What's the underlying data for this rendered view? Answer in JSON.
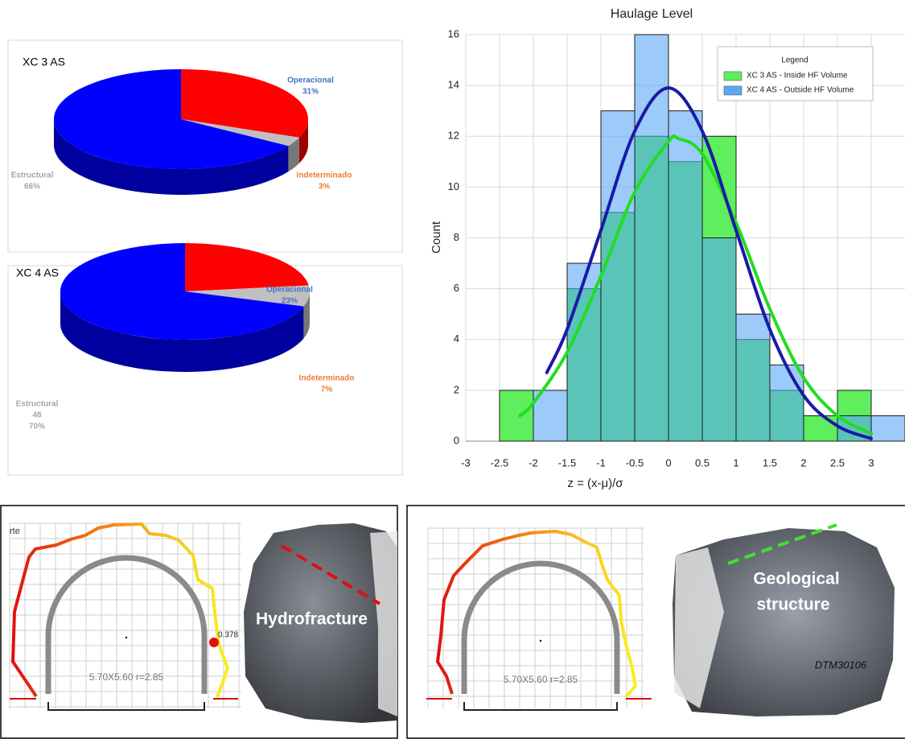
{
  "chart_data": [
    {
      "type": "pie",
      "title": "XC 3 AS",
      "categories": [
        "Operacional",
        "Indeterminado",
        "Estructural"
      ],
      "values": [
        31,
        3,
        66
      ],
      "value_labels": [
        "31%",
        "3%",
        "66%"
      ],
      "colors": [
        "#ff0000",
        "#c0c0c0",
        "#0000ff"
      ]
    },
    {
      "type": "pie",
      "title": "XC 4 AS",
      "categories": [
        "Operacional",
        "Indeterminado",
        "Estructural"
      ],
      "values": [
        23,
        7,
        70
      ],
      "value_labels": [
        "23%",
        "7%",
        "70%"
      ],
      "counts": [
        null,
        null,
        48
      ],
      "colors": [
        "#ff0000",
        "#c0c0c0",
        "#0000ff"
      ]
    },
    {
      "type": "histogram",
      "title": "Haulage Level",
      "x_label": "z = (x-μ)/σ",
      "y_label": "Count",
      "bins": [
        -2.5,
        -2,
        -1.5,
        -1,
        -0.5,
        0,
        0.5,
        1,
        1.5,
        2,
        2.5,
        3,
        3.5
      ],
      "series": [
        {
          "name": "XC 3 AS - Inside HF Volume",
          "color": "#5eee5e",
          "values": [
            2,
            0,
            6,
            9,
            12,
            11,
            12,
            4,
            2,
            1,
            2,
            0
          ]
        },
        {
          "name": "XC 4 AS - Outside HF Volume",
          "color": "#5aa8f5",
          "values": [
            0,
            2,
            7,
            13,
            16,
            13,
            8,
            5,
            3,
            0,
            1,
            1
          ]
        }
      ],
      "fits": [
        {
          "color": "#22dd22",
          "x": [
            -2.2,
            -2,
            -1.5,
            -1,
            -0.5,
            0,
            0.15,
            0.5,
            1,
            1.5,
            2,
            2.5,
            3
          ],
          "values": [
            1.0,
            1.5,
            3.5,
            6.5,
            9.8,
            11.8,
            11.9,
            11.3,
            8.6,
            5.2,
            2.5,
            1.0,
            0.3
          ]
        },
        {
          "color": "#1a1aa8",
          "x": [
            -1.8,
            -1.5,
            -1,
            -0.5,
            0,
            0.5,
            1,
            1.5,
            2,
            2.5,
            3
          ],
          "values": [
            2.7,
            4.4,
            8.3,
            12.2,
            13.9,
            12.2,
            8.3,
            4.4,
            1.8,
            0.6,
            0.1
          ]
        }
      ],
      "legend_title": "Legend",
      "legend": "upper right",
      "xlim": [
        -3,
        3.5
      ],
      "ylim": [
        0,
        16
      ],
      "xticks": [
        -3,
        -2.5,
        -2,
        -1.5,
        -1,
        -0.5,
        0,
        0.5,
        1,
        1.5,
        2,
        2.5,
        3
      ],
      "yticks": [
        0,
        2,
        4,
        6,
        8,
        10,
        12,
        14,
        16
      ],
      "grid": true
    }
  ],
  "panels": [
    {
      "profile_label": "5.70X5.60 r=2.85",
      "side_label": "rte",
      "point_value": 0.378,
      "photo_label": "Hydrofracture"
    },
    {
      "profile_label": "5.70X5.60 r=2.85",
      "photo_label_lines": [
        "Geological",
        "structure"
      ],
      "sample_id": "DTM30106"
    }
  ]
}
